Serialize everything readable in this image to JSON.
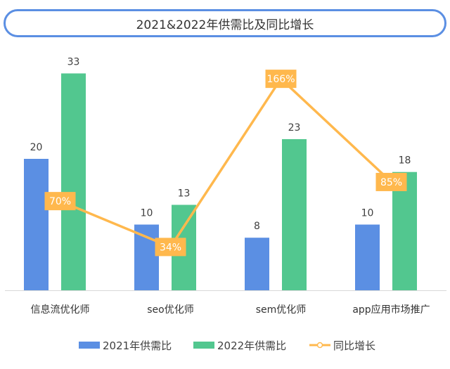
{
  "chart_data": {
    "type": "bar",
    "title": "2021&2022年供需比及同比增长",
    "categories": [
      "信息流优化师",
      "seo优化师",
      "sem优化师",
      "app应用市场推广"
    ],
    "series": [
      {
        "name": "2021年供需比",
        "type": "bar",
        "values": [
          20,
          10,
          8,
          10
        ],
        "color": "#5b8fe3"
      },
      {
        "name": "2022年供需比",
        "type": "bar",
        "values": [
          33,
          13,
          23,
          18
        ],
        "color": "#52c78f"
      },
      {
        "name": "同比增长",
        "type": "line",
        "axis": "secondary",
        "values": [
          70,
          34,
          166,
          85
        ],
        "unit": "%",
        "color": "#ffb84d"
      }
    ],
    "data_labels": true,
    "grid": false,
    "legend": "bottom"
  }
}
